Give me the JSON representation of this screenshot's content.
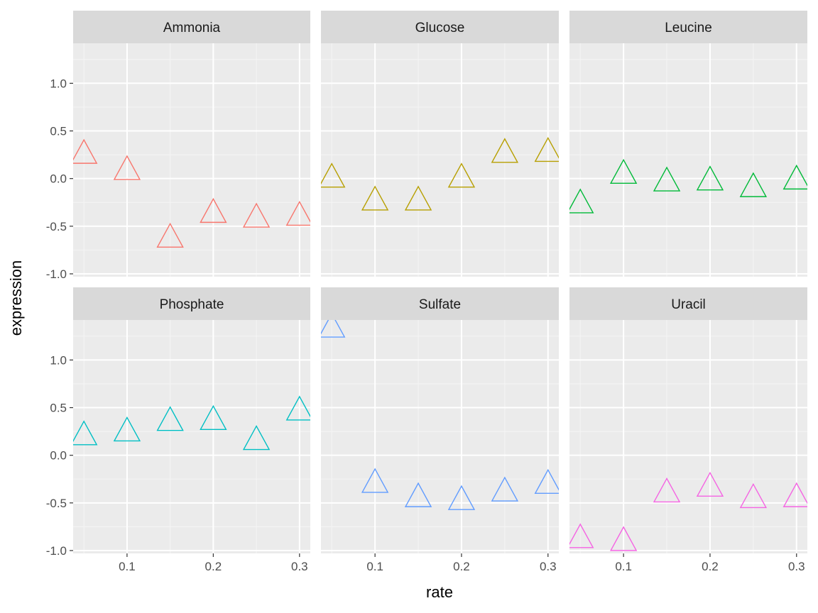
{
  "chart_data": {
    "type": "scatter",
    "facets": [
      {
        "name": "Ammonia",
        "color": "#F8766D",
        "x": [
          0.05,
          0.1,
          0.15,
          0.2,
          0.25,
          0.3
        ],
        "y": [
          0.25,
          0.08,
          -0.63,
          -0.37,
          -0.42,
          -0.4
        ]
      },
      {
        "name": "Glucose",
        "color": "#B79F00",
        "x": [
          0.05,
          0.1,
          0.15,
          0.2,
          0.25,
          0.3
        ],
        "y": [
          0.0,
          -0.24,
          -0.24,
          0.0,
          0.26,
          0.27
        ]
      },
      {
        "name": "Leucine",
        "color": "#00BA38",
        "x": [
          0.05,
          0.1,
          0.15,
          0.2,
          0.25,
          0.3
        ],
        "y": [
          -0.27,
          0.04,
          -0.04,
          -0.03,
          -0.1,
          -0.02
        ]
      },
      {
        "name": "Phosphate",
        "color": "#00BFC4",
        "x": [
          0.05,
          0.1,
          0.15,
          0.2,
          0.25,
          0.3
        ],
        "y": [
          0.2,
          0.24,
          0.35,
          0.36,
          0.15,
          0.46
        ]
      },
      {
        "name": "Sulfate",
        "color": "#619CFF",
        "x": [
          0.05,
          0.1,
          0.15,
          0.2,
          0.25,
          0.3
        ],
        "y": [
          1.33,
          -0.3,
          -0.45,
          -0.48,
          -0.39,
          -0.31
        ]
      },
      {
        "name": "Uracil",
        "color": "#F564E3",
        "x": [
          0.05,
          0.1,
          0.15,
          0.2,
          0.25,
          0.3
        ],
        "y": [
          -0.88,
          -0.91,
          -0.4,
          -0.34,
          -0.46,
          -0.45
        ]
      }
    ],
    "xlabel": "rate",
    "ylabel": "expression",
    "xlim": [
      0.0375,
      0.3125
    ],
    "ylim": [
      -1.03,
      1.42
    ],
    "xticks": [
      0.1,
      0.2,
      0.3
    ],
    "xtick_labels": [
      "0.1",
      "0.2",
      "0.3"
    ],
    "yticks": [
      -1.0,
      -0.5,
      0.0,
      0.5,
      1.0
    ],
    "ytick_labels": [
      "-1.0",
      "-0.5",
      "0.0",
      "0.5",
      "1.0"
    ],
    "grid": true,
    "marker": "open-triangle",
    "legend": "none"
  }
}
